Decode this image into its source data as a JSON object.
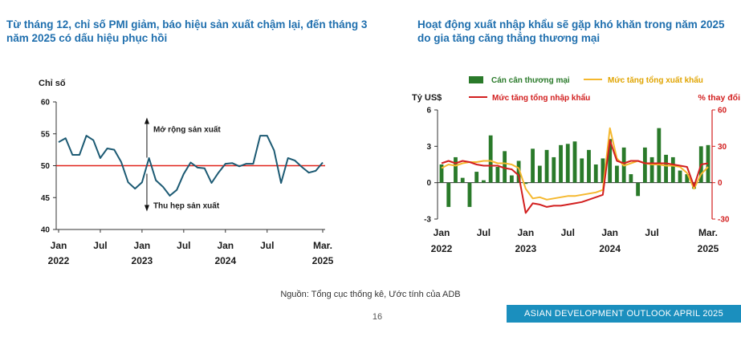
{
  "left_title": "Từ tháng 12, chỉ số PMI giảm, báo hiệu sản xuất chậm lại, đến tháng 3 năm 2025 có dấu hiệu phục hồi",
  "right_title": "Hoạt động xuất nhập khẩu sẽ gặp khó khăn trong năm 2025 do gia tăng căng thẳng thương mại",
  "source": "Nguồn: Tổng cục thống kê, Ước tính của ADB",
  "page_number": "16",
  "footer_banner": "ASIAN DEVELOPMENT OUTLOOK APRIL 2025",
  "chart_data": [
    {
      "type": "line",
      "ylabel": "Chỉ số",
      "ylim": [
        40,
        60
      ],
      "yticks": [
        "40",
        "45",
        "50",
        "55",
        "60"
      ],
      "xticks": [
        {
          "month": 0,
          "top": "Jan",
          "bottom": "2022"
        },
        {
          "month": 6,
          "top": "Jul",
          "bottom": ""
        },
        {
          "month": 12,
          "top": "Jan",
          "bottom": "2023"
        },
        {
          "month": 18,
          "top": "Jul",
          "bottom": ""
        },
        {
          "month": 24,
          "top": "Jan",
          "bottom": "2024"
        },
        {
          "month": 30,
          "top": "Jul",
          "bottom": ""
        },
        {
          "month": 38,
          "top": "Mar.",
          "bottom": "2025"
        }
      ],
      "reference_line": 50,
      "annotations": {
        "up": "Mở rộng sản xuất",
        "down": "Thu hẹp sản xuất"
      },
      "series": [
        {
          "color": "#1c5a73",
          "values": [
            53.7,
            54.3,
            51.7,
            51.7,
            54.7,
            54.0,
            51.2,
            52.7,
            52.5,
            50.6,
            47.4,
            46.4,
            47.4,
            51.2,
            47.7,
            46.7,
            45.3,
            46.2,
            48.7,
            50.5,
            49.7,
            49.6,
            47.3,
            48.9,
            50.3,
            50.4,
            49.9,
            50.3,
            50.3,
            54.7,
            54.7,
            52.4,
            47.3,
            51.2,
            50.8,
            49.8,
            48.9,
            49.2,
            50.5
          ]
        }
      ]
    },
    {
      "type": "bar+line",
      "ylabel_left": "Tỷ US$",
      "ylabel_right": "% thay đổi",
      "ylim_left": [
        -3,
        6
      ],
      "ylim_right": [
        -30,
        60
      ],
      "yticks_left": [
        "-3",
        "0",
        "3",
        "6"
      ],
      "yticks_right": [
        "-30",
        "0",
        "30",
        "60"
      ],
      "xticks": [
        {
          "month": 0,
          "top": "Jan",
          "bottom": "2022"
        },
        {
          "month": 6,
          "top": "Jul",
          "bottom": ""
        },
        {
          "month": 12,
          "top": "Jan",
          "bottom": "2023"
        },
        {
          "month": 18,
          "top": "Jul",
          "bottom": ""
        },
        {
          "month": 24,
          "top": "Jan",
          "bottom": "2024"
        },
        {
          "month": 30,
          "top": "Jul",
          "bottom": ""
        },
        {
          "month": 38,
          "top": "Mar.",
          "bottom": "2025"
        }
      ],
      "legend": [
        {
          "name": "Cán cân thương mại",
          "color": "#2a7a2a",
          "kind": "bar"
        },
        {
          "name": "Mức tăng tổng xuất khẩu",
          "color": "#f5b82e",
          "kind": "line"
        },
        {
          "name": "Mức tăng tổng nhập khẩu",
          "color": "#d21f1f",
          "kind": "line"
        }
      ],
      "series": [
        {
          "name": "Cán cân thương mại",
          "axis": "left",
          "values": [
            1.5,
            -2.0,
            2.1,
            0.4,
            -2.0,
            0.9,
            0.2,
            3.9,
            1.3,
            2.6,
            0.6,
            1.8,
            -0.1,
            2.8,
            1.4,
            2.7,
            2.1,
            3.1,
            3.2,
            3.4,
            2.0,
            2.7,
            1.5,
            2.0,
            3.6,
            1.4,
            2.9,
            0.7,
            -1.1,
            2.9,
            2.1,
            4.5,
            2.3,
            2.1,
            1.0,
            0.7,
            -0.5,
            3.0,
            3.1
          ]
        },
        {
          "name": "Mức tăng tổng xuất khẩu",
          "axis": "right",
          "values": [
            12,
            15,
            14,
            16,
            17,
            17,
            18,
            18,
            16,
            16,
            15,
            12,
            -5,
            -13,
            -12,
            -14,
            -13,
            -12,
            -11,
            -11,
            -10,
            -9,
            -8,
            -6,
            45,
            20,
            14,
            16,
            18,
            16,
            15,
            15,
            14,
            14,
            13,
            8,
            -5,
            7,
            13
          ]
        },
        {
          "name": "Mức tăng tổng nhập khẩu",
          "axis": "right",
          "values": [
            16,
            18,
            16,
            18,
            17,
            15,
            14,
            14,
            14,
            12,
            11,
            6,
            -25,
            -17,
            -18,
            -20,
            -19,
            -19,
            -18,
            -17,
            -16,
            -14,
            -12,
            -10,
            35,
            18,
            16,
            18,
            18,
            16,
            16,
            16,
            16,
            15,
            14,
            13,
            -3,
            15,
            16
          ]
        }
      ]
    }
  ]
}
